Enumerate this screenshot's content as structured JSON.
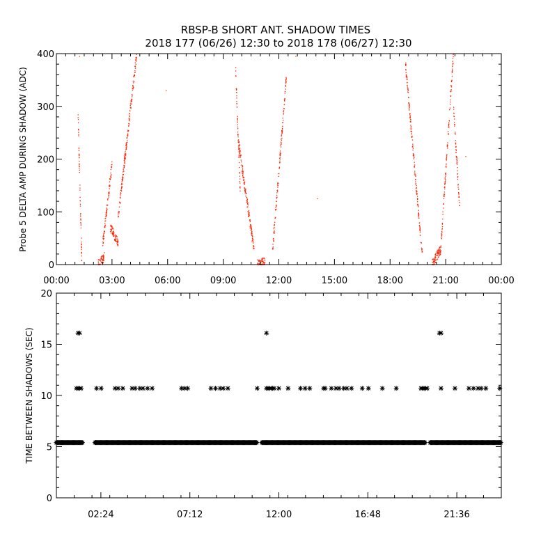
{
  "title_line1": "RBSP-B SHORT ANT. SHADOW TIMES",
  "title_line2": "2018 177 (06/26) 12:30 to 2018 178 (06/27) 12:30",
  "colors": {
    "points_top": "#ff2200",
    "points_bottom": "#000000",
    "axes": "#000000",
    "background": "#ffffff"
  },
  "chart_data": [
    {
      "type": "scatter",
      "ylabel": "Probe 5 DELTA AMP DURING SHADOW (ADC)",
      "xlabel": "",
      "xlim": [
        "00:00",
        "24:00"
      ],
      "ylim": [
        0,
        400
      ],
      "x_tick_labels": [
        "00:00",
        "03:00",
        "06:00",
        "09:00",
        "12:00",
        "15:00",
        "18:00",
        "21:00",
        "00:00"
      ],
      "y_tick_labels": [
        "0",
        "100",
        "200",
        "300",
        "400"
      ],
      "series_color": "#ff2200",
      "clusters": [
        {
          "x_start": "01:10",
          "x_end": "01:22",
          "y_start": 290,
          "y_end": 10
        },
        {
          "x_start": "02:15",
          "x_end": "02:35",
          "y_start": 0,
          "y_end": 15
        },
        {
          "x_start": "02:30",
          "x_end": "03:00",
          "y_start": 40,
          "y_end": 190
        },
        {
          "x_start": "02:55",
          "x_end": "03:20",
          "y_start": 70,
          "y_end": 40
        },
        {
          "x_start": "03:20",
          "x_end": "04:20",
          "y_start": 90,
          "y_end": 400
        },
        {
          "x_start": "09:40",
          "x_end": "09:55",
          "y_start": 370,
          "y_end": 140
        },
        {
          "x_start": "09:50",
          "x_end": "10:40",
          "y_start": 230,
          "y_end": 25
        },
        {
          "x_start": "10:50",
          "x_end": "11:15",
          "y_start": 0,
          "y_end": 5
        },
        {
          "x_start": "11:40",
          "x_end": "12:25",
          "y_start": 30,
          "y_end": 360
        },
        {
          "x_start": "18:50",
          "x_end": "19:45",
          "y_start": 380,
          "y_end": 10
        },
        {
          "x_start": "20:15",
          "x_end": "20:45",
          "y_start": 0,
          "y_end": 30
        },
        {
          "x_start": "20:45",
          "x_end": "21:25",
          "y_start": 40,
          "y_end": 400
        },
        {
          "x_start": "21:25",
          "x_end": "21:45",
          "y_start": 300,
          "y_end": 110
        }
      ],
      "isolated_points": [
        {
          "x": "01:15",
          "y": 395
        },
        {
          "x": "05:55",
          "y": 330
        },
        {
          "x": "12:55",
          "y": 395
        },
        {
          "x": "14:05",
          "y": 125
        },
        {
          "x": "22:05",
          "y": 205
        }
      ]
    },
    {
      "type": "scatter",
      "ylabel": "TIME BETWEEN SHADOWS (SEC)",
      "xlabel": "",
      "xlim": [
        "00:00",
        "24:00"
      ],
      "ylim": [
        0,
        20
      ],
      "x_tick_labels": [
        "02:24",
        "07:12",
        "12:00",
        "16:48",
        "21:36"
      ],
      "y_tick_labels": [
        "0",
        "5",
        "10",
        "15",
        "20"
      ],
      "series_color": "#000000",
      "marker": "*",
      "y_levels": [
        5.4,
        10.7,
        16.1
      ],
      "level_5_4_ranges": [
        [
          "00:00",
          "01:25"
        ],
        [
          "02:05",
          "10:50"
        ],
        [
          "11:05",
          "19:55"
        ],
        [
          "20:10",
          "24:00"
        ]
      ],
      "level_10_7_x": [
        "01:05",
        "01:10",
        "01:15",
        "01:20",
        "02:10",
        "02:25",
        "03:10",
        "03:20",
        "03:35",
        "04:05",
        "04:15",
        "04:30",
        "04:40",
        "04:55",
        "05:10",
        "06:45",
        "06:55",
        "07:05",
        "08:20",
        "08:35",
        "08:50",
        "09:00",
        "09:15",
        "10:50",
        "11:20",
        "11:25",
        "11:30",
        "11:35",
        "11:40",
        "11:45",
        "12:00",
        "12:30",
        "13:10",
        "13:25",
        "13:40",
        "14:25",
        "14:30",
        "14:50",
        "15:05",
        "15:15",
        "15:30",
        "15:40",
        "15:55",
        "16:30",
        "16:50",
        "17:35",
        "18:20",
        "19:40",
        "19:45",
        "19:50",
        "19:55",
        "20:00",
        "20:45",
        "21:30",
        "22:15",
        "22:30",
        "22:45",
        "22:55",
        "23:10",
        "23:55"
      ],
      "level_16_1_x": [
        "01:10",
        "01:15",
        "11:20",
        "20:40",
        "20:45"
      ]
    }
  ]
}
